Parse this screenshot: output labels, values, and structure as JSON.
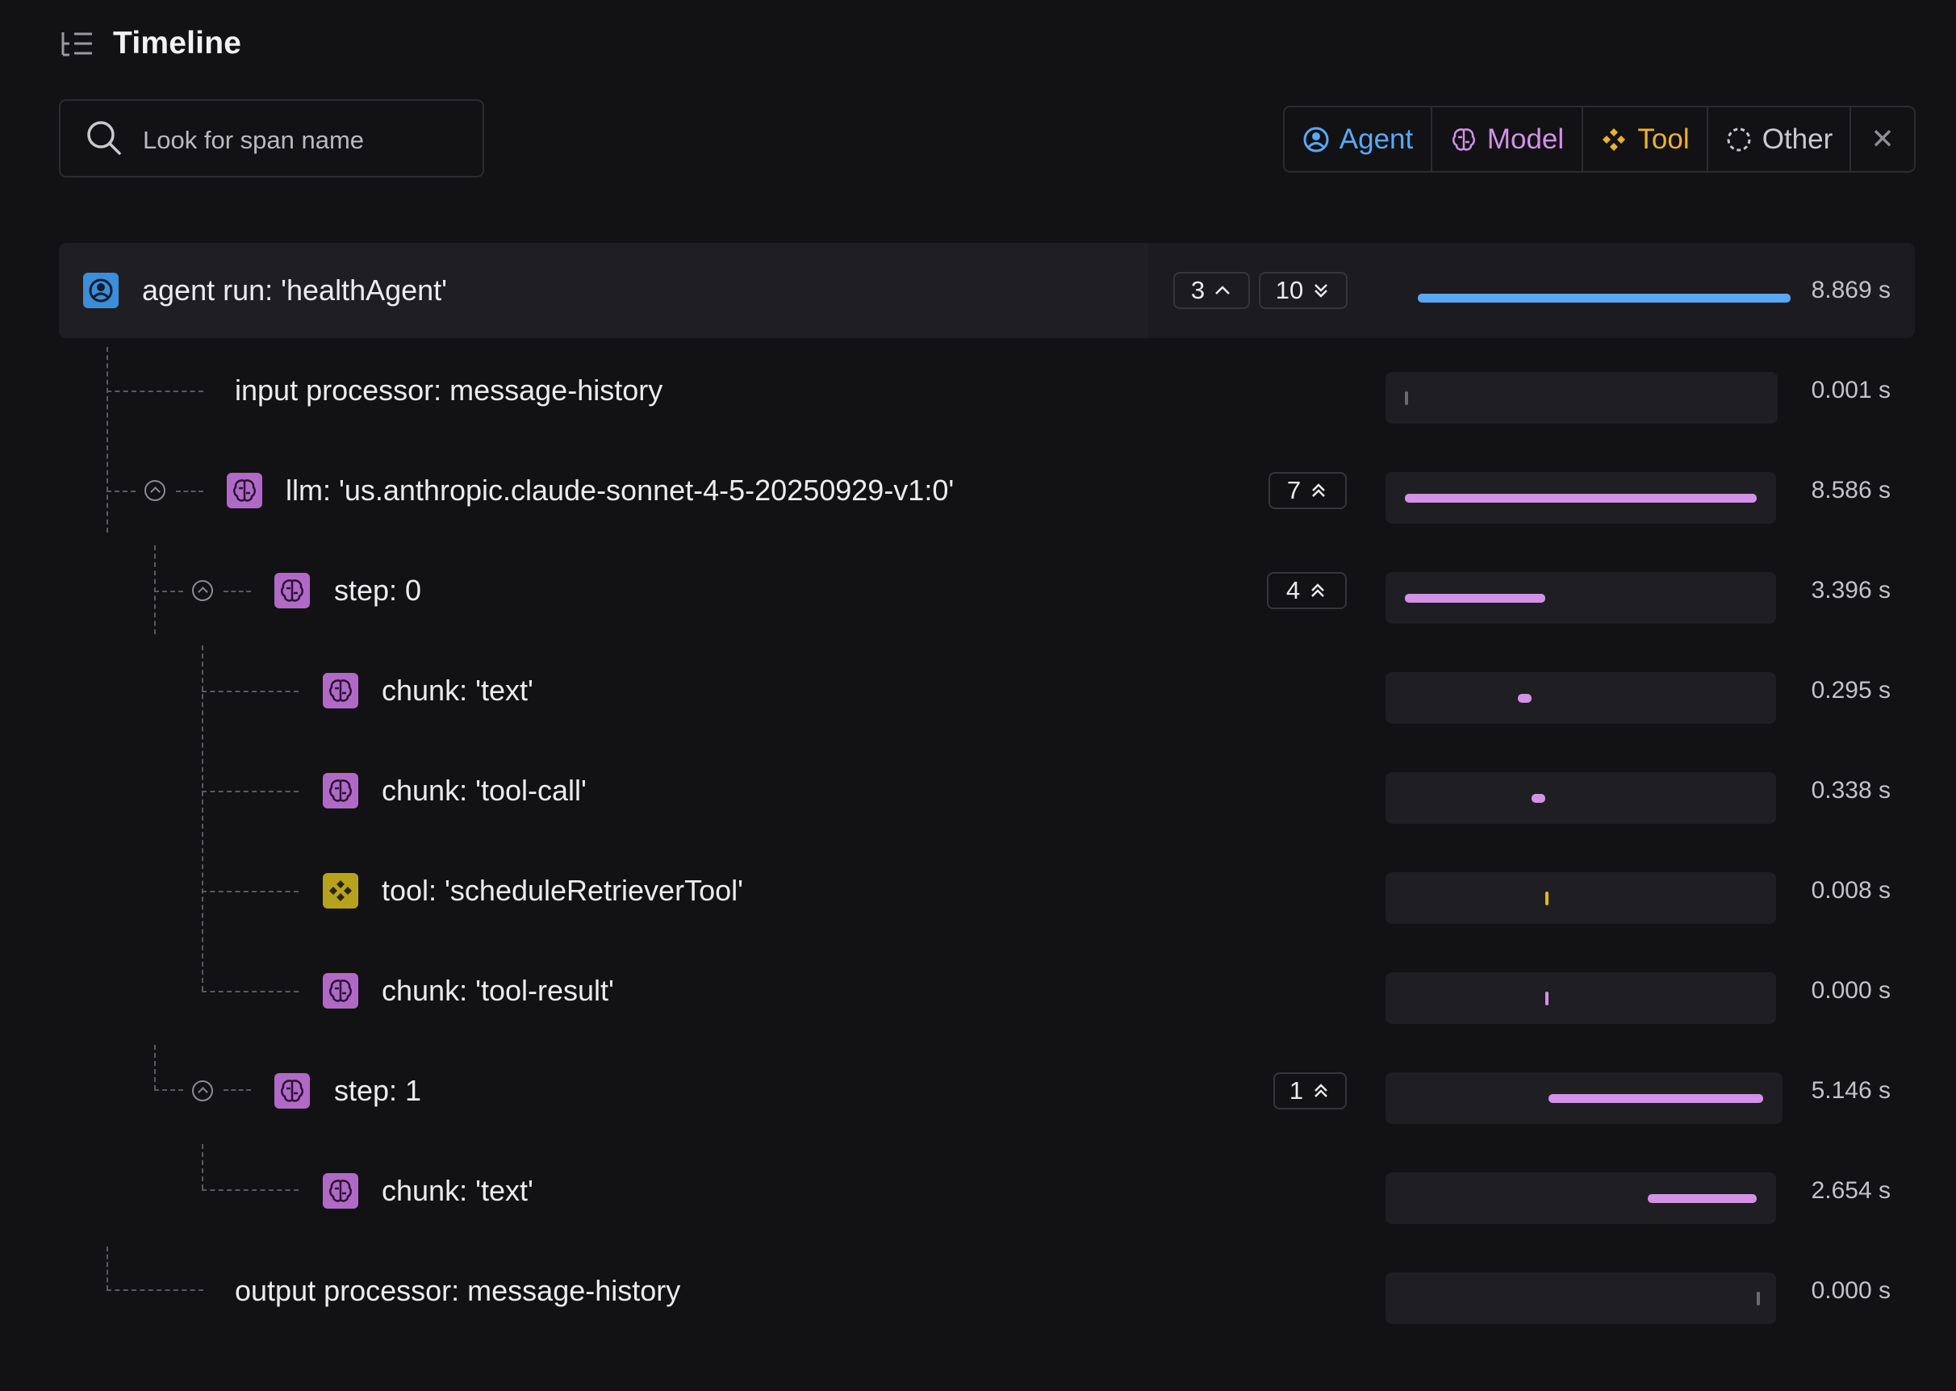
{
  "header": {
    "title": "Timeline",
    "icon": "timeline-list-icon"
  },
  "search": {
    "placeholder": "Look for span name",
    "value": ""
  },
  "filters": [
    {
      "label": "Agent",
      "icon": "agent-user-icon",
      "color": "#5aa8f5"
    },
    {
      "label": "Model",
      "icon": "brain-icon",
      "color": "#d590e9"
    },
    {
      "label": "Tool",
      "icon": "tool-diamonds-icon",
      "color": "#eab32b"
    },
    {
      "label": "Other",
      "icon": "dashed-circle-icon",
      "color": "#c9c9cf"
    }
  ],
  "filters_clear": {
    "symbol": "✕"
  },
  "colors": {
    "agent": "#5aa8f5",
    "model": "#d590e9",
    "tool": "#e0b81e",
    "other": "#6a6a70"
  },
  "spans": [
    {
      "label": "agent run: 'healthAgent'",
      "type": "agent",
      "depth": 0,
      "duration": "8.869 s",
      "bar_start": 0.0,
      "bar_end": 1.0,
      "badges": [
        "3",
        "10"
      ]
    },
    {
      "label": "input processor: message-history",
      "type": "other",
      "depth": 1,
      "duration": "0.001 s",
      "bar_start": 0.0,
      "bar_end": 0.0
    },
    {
      "label": "llm: 'us.anthropic.claude-sonnet-4-5-20250929-v1:0'",
      "type": "model",
      "depth": 1,
      "duration": "8.586 s",
      "bar_start": 0.0,
      "bar_end": 1.0,
      "badges": [
        "7"
      ]
    },
    {
      "label": "step: 0",
      "type": "model",
      "depth": 2,
      "duration": "3.396 s",
      "bar_start": 0.0,
      "bar_end": 0.4,
      "badges": [
        "4"
      ]
    },
    {
      "label": "chunk: 'text'",
      "type": "model",
      "depth": 3,
      "duration": "0.295 s",
      "bar_start": 0.32,
      "bar_end": 0.36
    },
    {
      "label": "chunk: 'tool-call'",
      "type": "model",
      "depth": 3,
      "duration": "0.338 s",
      "bar_start": 0.36,
      "bar_end": 0.4
    },
    {
      "label": "tool: 'scheduleRetrieverTool'",
      "type": "tool",
      "depth": 3,
      "duration": "0.008 s",
      "bar_start": 0.4,
      "bar_end": 0.401
    },
    {
      "label": "chunk: 'tool-result'",
      "type": "model",
      "depth": 3,
      "duration": "0.000 s",
      "bar_start": 0.4,
      "bar_end": 0.4
    },
    {
      "label": "step: 1",
      "type": "model",
      "depth": 2,
      "duration": "5.146 s",
      "bar_start": 0.4,
      "bar_end": 1.0,
      "badges": [
        "1"
      ]
    },
    {
      "label": "chunk: 'text'",
      "type": "model",
      "depth": 3,
      "duration": "2.654 s",
      "bar_start": 0.69,
      "bar_end": 1.0
    },
    {
      "label": "output processor: message-history",
      "type": "other",
      "depth": 1,
      "duration": "0.000 s",
      "bar_start": 1.0,
      "bar_end": 1.0
    }
  ]
}
